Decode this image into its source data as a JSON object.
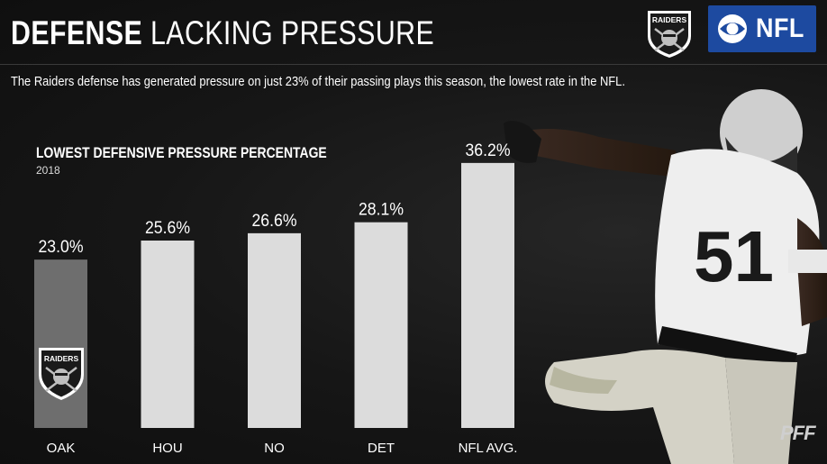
{
  "header": {
    "title_bold": "DEFENSE",
    "title_light": "LACKING PRESSURE",
    "subtitle": "The Raiders defense has generated pressure on just 23% of their passing plays this season, the lowest rate in the NFL.",
    "raiders_logo_text": "RAIDERS",
    "network_logo_text": "NFL",
    "network_logo_name": "CBS Sports eye logo"
  },
  "watermark": "PFF",
  "player_jersey_number": "51",
  "colors": {
    "background": "#141414",
    "bar_default": "#dcdcdc",
    "bar_highlight": "#6e6e6e",
    "network_blue": "#1d4aa0"
  },
  "chart_data": {
    "type": "bar",
    "title": "LOWEST DEFENSIVE PRESSURE PERCENTAGE",
    "subtitle": "2018",
    "categories": [
      "OAK",
      "HOU",
      "NO",
      "DET",
      "NFL AVG."
    ],
    "values": [
      23.0,
      25.6,
      26.6,
      28.1,
      36.2
    ],
    "value_labels": [
      "23.0%",
      "25.6%",
      "26.6%",
      "28.1%",
      "36.2%"
    ],
    "highlight_index": 0,
    "ylim": [
      0,
      40
    ],
    "grid": false,
    "xlabel": "",
    "ylabel": ""
  }
}
